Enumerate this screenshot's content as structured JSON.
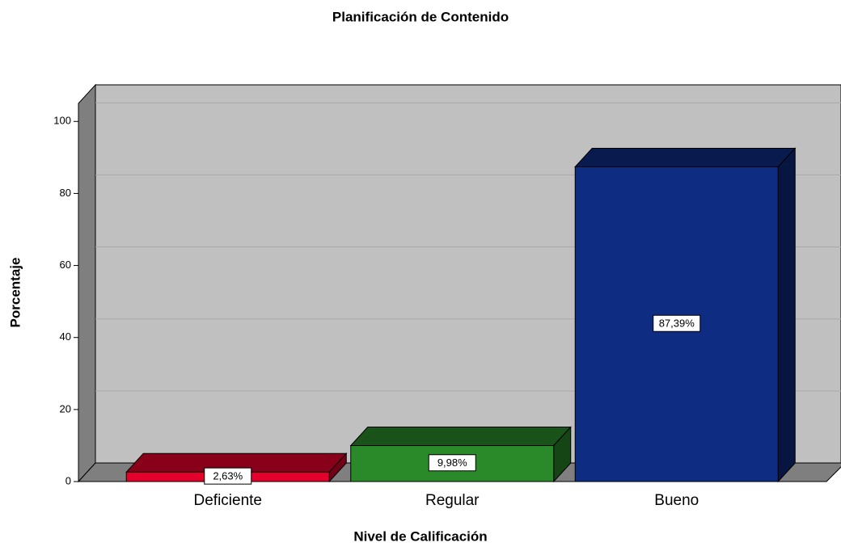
{
  "chart_data": {
    "type": "bar3d",
    "title": "Planificación de Contenido",
    "x_label": "Nivel de Calificación",
    "y_label": "Porcentaje",
    "categories": [
      "Deficiente",
      "Regular",
      "Bueno"
    ],
    "values": [
      2.63,
      9.98,
      87.39
    ],
    "value_labels": [
      "2,63%",
      "9,98%",
      "87,39%"
    ],
    "colors": [
      "#e4002b",
      "#2a8a2a",
      "#0e2c82"
    ],
    "ylim": [
      0,
      105
    ],
    "yticks": [
      0,
      20,
      40,
      60,
      80,
      100
    ],
    "grid": true
  }
}
